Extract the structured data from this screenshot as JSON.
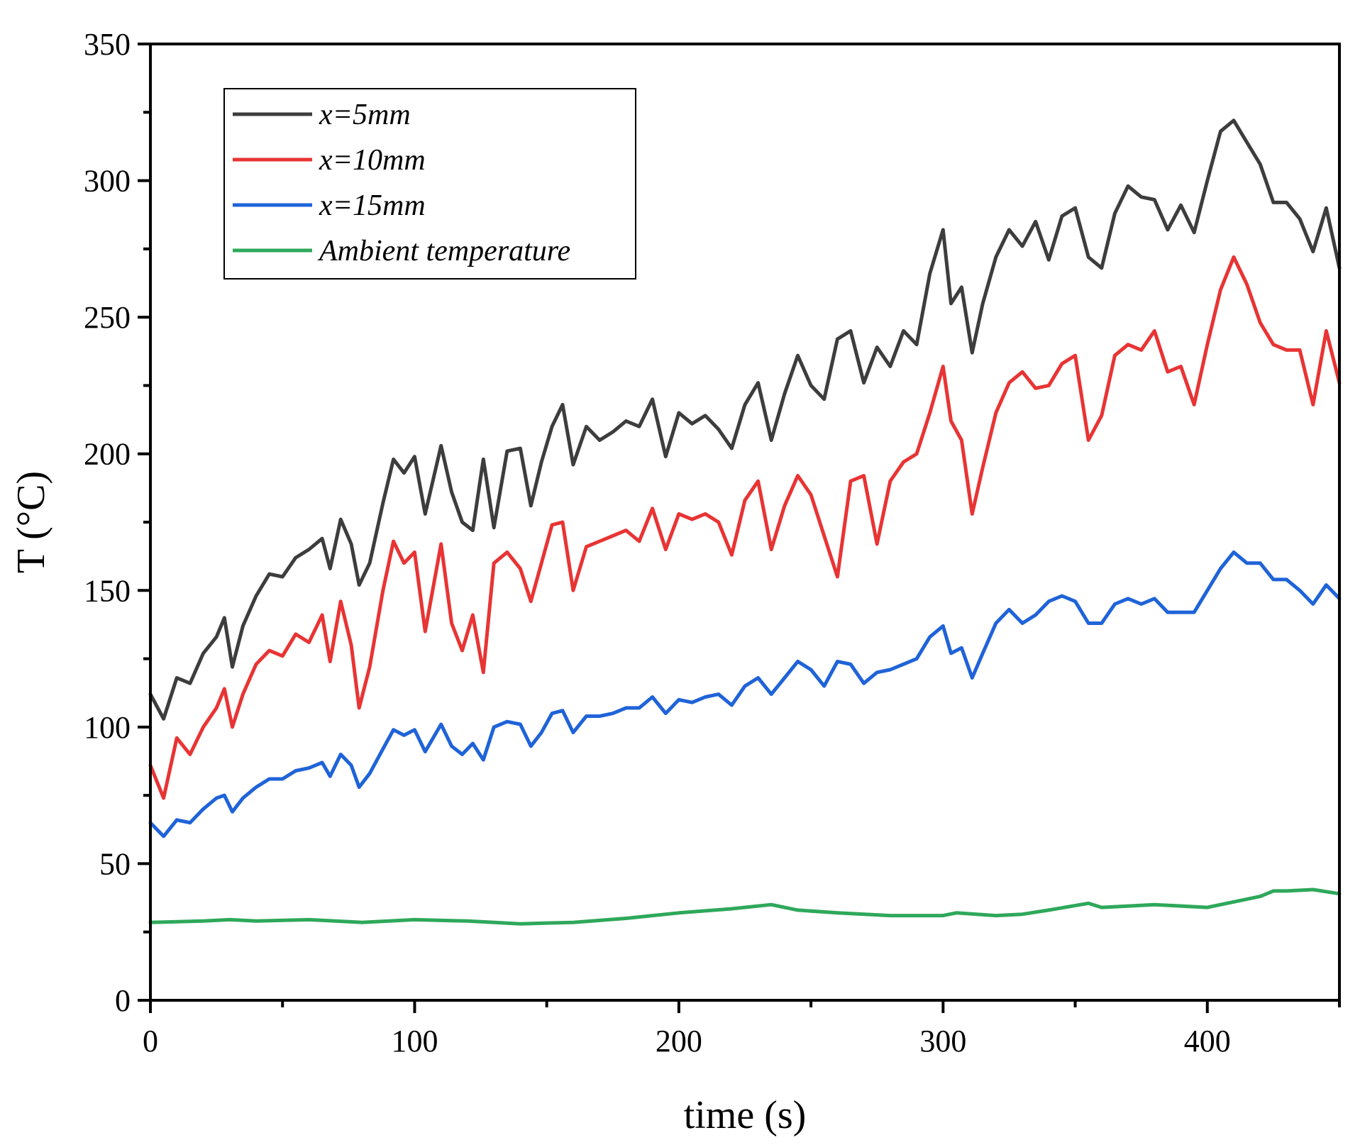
{
  "chart_data": {
    "type": "line",
    "title": "",
    "xlabel": "time (s)",
    "ylabel": "T (°C)",
    "xlim": [
      0,
      450
    ],
    "ylim": [
      0,
      350
    ],
    "xticks": [
      0,
      100,
      200,
      300,
      400
    ],
    "yticks": [
      0,
      50,
      100,
      150,
      200,
      250,
      300,
      350
    ],
    "grid": false,
    "legend_position": "top-left",
    "series": [
      {
        "name": "x=5mm",
        "color": "#3d3d3d",
        "x": [
          0,
          5,
          10,
          15,
          20,
          25,
          28,
          31,
          35,
          40,
          45,
          50,
          55,
          60,
          65,
          68,
          72,
          76,
          79,
          83,
          88,
          92,
          96,
          100,
          104,
          110,
          114,
          118,
          122,
          126,
          130,
          135,
          140,
          144,
          148,
          152,
          156,
          160,
          165,
          170,
          175,
          180,
          185,
          190,
          195,
          200,
          205,
          210,
          215,
          220,
          225,
          230,
          235,
          240,
          245,
          250,
          255,
          260,
          265,
          270,
          275,
          280,
          285,
          290,
          295,
          300,
          303,
          307,
          311,
          315,
          320,
          325,
          330,
          335,
          340,
          345,
          350,
          355,
          360,
          365,
          370,
          375,
          380,
          385,
          390,
          395,
          400,
          405,
          410,
          415,
          420,
          425,
          430,
          435,
          440,
          445,
          450
        ],
        "values": [
          112,
          103,
          118,
          116,
          127,
          133,
          140,
          122,
          137,
          148,
          156,
          155,
          162,
          165,
          169,
          158,
          176,
          167,
          152,
          160,
          182,
          198,
          193,
          199,
          178,
          203,
          186,
          175,
          172,
          198,
          173,
          201,
          202,
          181,
          197,
          210,
          218,
          196,
          210,
          205,
          208,
          212,
          210,
          220,
          199,
          215,
          211,
          214,
          209,
          202,
          218,
          226,
          205,
          222,
          236,
          225,
          220,
          242,
          245,
          226,
          239,
          232,
          245,
          240,
          266,
          282,
          255,
          261,
          237,
          255,
          272,
          282,
          276,
          285,
          271,
          287,
          290,
          272,
          268,
          288,
          298,
          294,
          293,
          282,
          291,
          281,
          300,
          318,
          322,
          314,
          306,
          292,
          292,
          286,
          274,
          290,
          268
        ]
      },
      {
        "name": "x=10mm",
        "color": "#e83434",
        "x": [
          0,
          5,
          10,
          15,
          20,
          25,
          28,
          31,
          35,
          40,
          45,
          50,
          55,
          60,
          65,
          68,
          72,
          76,
          79,
          83,
          88,
          92,
          96,
          100,
          104,
          110,
          114,
          118,
          122,
          126,
          130,
          135,
          140,
          144,
          148,
          152,
          156,
          160,
          165,
          170,
          175,
          180,
          185,
          190,
          195,
          200,
          205,
          210,
          215,
          220,
          225,
          230,
          235,
          240,
          245,
          250,
          255,
          260,
          265,
          270,
          275,
          280,
          285,
          290,
          295,
          300,
          303,
          307,
          311,
          315,
          320,
          325,
          330,
          335,
          340,
          345,
          350,
          355,
          360,
          365,
          370,
          375,
          380,
          385,
          390,
          395,
          400,
          405,
          410,
          415,
          420,
          425,
          430,
          435,
          440,
          445,
          450
        ],
        "values": [
          86,
          74,
          96,
          90,
          100,
          107,
          114,
          100,
          112,
          123,
          128,
          126,
          134,
          131,
          141,
          124,
          146,
          130,
          107,
          122,
          150,
          168,
          160,
          164,
          135,
          167,
          138,
          128,
          141,
          120,
          160,
          164,
          158,
          146,
          160,
          174,
          175,
          150,
          166,
          168,
          170,
          172,
          168,
          180,
          165,
          178,
          176,
          178,
          175,
          163,
          183,
          190,
          165,
          181,
          192,
          185,
          170,
          155,
          190,
          192,
          167,
          190,
          197,
          200,
          215,
          232,
          212,
          205,
          178,
          195,
          215,
          226,
          230,
          224,
          225,
          233,
          236,
          205,
          214,
          236,
          240,
          238,
          245,
          230,
          232,
          218,
          240,
          260,
          272,
          262,
          248,
          240,
          238,
          238,
          218,
          245,
          226
        ]
      },
      {
        "name": "x=15mm",
        "color": "#1f63d8",
        "x": [
          0,
          5,
          10,
          15,
          20,
          25,
          28,
          31,
          35,
          40,
          45,
          50,
          55,
          60,
          65,
          68,
          72,
          76,
          79,
          83,
          88,
          92,
          96,
          100,
          104,
          110,
          114,
          118,
          122,
          126,
          130,
          135,
          140,
          144,
          148,
          152,
          156,
          160,
          165,
          170,
          175,
          180,
          185,
          190,
          195,
          200,
          205,
          210,
          215,
          220,
          225,
          230,
          235,
          240,
          245,
          250,
          255,
          260,
          265,
          270,
          275,
          280,
          285,
          290,
          295,
          300,
          303,
          307,
          311,
          315,
          320,
          325,
          330,
          335,
          340,
          345,
          350,
          355,
          360,
          365,
          370,
          375,
          380,
          385,
          390,
          395,
          400,
          405,
          410,
          415,
          420,
          425,
          430,
          435,
          440,
          445,
          450
        ],
        "values": [
          65,
          60,
          66,
          65,
          70,
          74,
          75,
          69,
          74,
          78,
          81,
          81,
          84,
          85,
          87,
          82,
          90,
          86,
          78,
          83,
          92,
          99,
          97,
          99,
          91,
          101,
          93,
          90,
          94,
          88,
          100,
          102,
          101,
          93,
          98,
          105,
          106,
          98,
          104,
          104,
          105,
          107,
          107,
          111,
          105,
          110,
          109,
          111,
          112,
          108,
          115,
          118,
          112,
          118,
          124,
          121,
          115,
          124,
          123,
          116,
          120,
          121,
          123,
          125,
          133,
          137,
          127,
          129,
          118,
          127,
          138,
          143,
          138,
          141,
          146,
          148,
          146,
          138,
          138,
          145,
          147,
          145,
          147,
          142,
          142,
          142,
          150,
          158,
          164,
          160,
          160,
          154,
          154,
          150,
          145,
          152,
          147
        ]
      },
      {
        "name": "Ambient temperature",
        "color": "#2ea85a",
        "x": [
          0,
          20,
          30,
          40,
          60,
          80,
          100,
          120,
          140,
          160,
          180,
          200,
          220,
          235,
          245,
          260,
          280,
          300,
          305,
          320,
          330,
          340,
          355,
          360,
          380,
          400,
          410,
          420,
          425,
          430,
          440,
          450
        ],
        "values": [
          28.5,
          29,
          29.5,
          29,
          29.5,
          28.5,
          29.5,
          29,
          28,
          28.5,
          30,
          32,
          33.5,
          35,
          33,
          32,
          31,
          31,
          32,
          31,
          31.5,
          33,
          35.5,
          34,
          35,
          34,
          36,
          38,
          40,
          40,
          40.5,
          39
        ]
      }
    ]
  }
}
